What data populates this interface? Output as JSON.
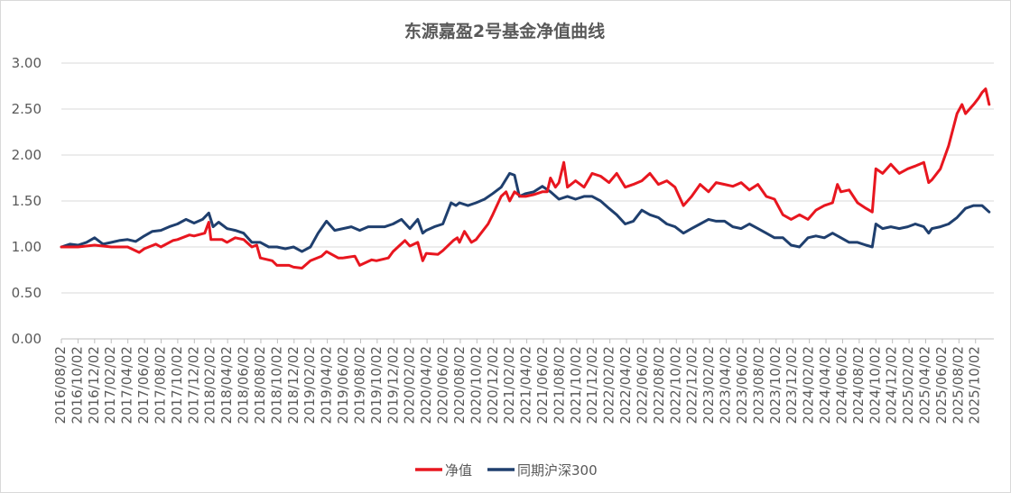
{
  "chart_data": {
    "type": "line",
    "title": "东源嘉盈2号基金净值曲线",
    "xlabel": "",
    "ylabel": "",
    "ylim": [
      0,
      3
    ],
    "yticks": [
      "0.00",
      "0.50",
      "1.00",
      "1.50",
      "2.00",
      "2.50",
      "3.00"
    ],
    "grid": "horizontal",
    "legend_position": "bottom",
    "x_tick_labels": [
      "2016/08/02",
      "2016/10/02",
      "2016/12/02",
      "2017/02/02",
      "2017/04/02",
      "2017/06/02",
      "2017/08/02",
      "2017/10/02",
      "2017/12/02",
      "2018/02/02",
      "2018/04/02",
      "2018/06/02",
      "2018/08/02",
      "2018/10/02",
      "2018/12/02",
      "2019/02/02",
      "2019/04/02",
      "2019/06/02",
      "2019/08/02",
      "2019/10/02",
      "2019/12/02",
      "2020/02/02",
      "2020/04/02",
      "2020/06/02",
      "2020/08/02",
      "2020/10/02",
      "2020/12/02",
      "2021/02/02",
      "2021/04/02",
      "2021/06/02",
      "2021/08/02",
      "2021/10/02",
      "2021/12/02",
      "2022/02/02",
      "2022/04/02",
      "2022/06/02",
      "2022/08/02",
      "2022/10/02",
      "2022/12/02",
      "2023/02/02",
      "2023/04/02",
      "2023/06/02",
      "2023/08/02",
      "2023/10/02",
      "2023/12/02",
      "2024/02/02",
      "2024/04/02",
      "2024/06/02",
      "2024/08/02",
      "2024/10/02",
      "2024/12/02",
      "2025/02/02",
      "2025/04/02",
      "2025/06/02",
      "2025/08/02",
      "2025/10/02"
    ],
    "series": [
      {
        "name": "净值",
        "color": "#e8161f",
        "points": [
          [
            "2016/08/02",
            1.0
          ],
          [
            "2016/10/02",
            1.0
          ],
          [
            "2016/12/02",
            1.02
          ],
          [
            "2017/02/02",
            1.0
          ],
          [
            "2017/04/02",
            1.0
          ],
          [
            "2017/05/15",
            0.94
          ],
          [
            "2017/06/02",
            0.98
          ],
          [
            "2017/07/15",
            1.03
          ],
          [
            "2017/08/02",
            1.0
          ],
          [
            "2017/09/15",
            1.07
          ],
          [
            "2017/10/02",
            1.08
          ],
          [
            "2017/11/15",
            1.13
          ],
          [
            "2017/12/02",
            1.12
          ],
          [
            "2018/01/10",
            1.15
          ],
          [
            "2018/01/25",
            1.27
          ],
          [
            "2018/02/02",
            1.08
          ],
          [
            "2018/03/15",
            1.08
          ],
          [
            "2018/04/02",
            1.05
          ],
          [
            "2018/05/02",
            1.1
          ],
          [
            "2018/06/02",
            1.08
          ],
          [
            "2018/07/02",
            1.0
          ],
          [
            "2018/07/20",
            1.02
          ],
          [
            "2018/08/02",
            0.88
          ],
          [
            "2018/09/15",
            0.85
          ],
          [
            "2018/10/02",
            0.8
          ],
          [
            "2018/11/15",
            0.8
          ],
          [
            "2018/12/02",
            0.78
          ],
          [
            "2019/01/02",
            0.77
          ],
          [
            "2019/02/02",
            0.85
          ],
          [
            "2019/03/15",
            0.9
          ],
          [
            "2019/04/02",
            0.95
          ],
          [
            "2019/05/15",
            0.88
          ],
          [
            "2019/06/02",
            0.88
          ],
          [
            "2019/07/15",
            0.9
          ],
          [
            "2019/08/02",
            0.8
          ],
          [
            "2019/09/15",
            0.86
          ],
          [
            "2019/10/02",
            0.85
          ],
          [
            "2019/11/15",
            0.88
          ],
          [
            "2019/12/02",
            0.95
          ],
          [
            "2020/01/15",
            1.07
          ],
          [
            "2020/02/02",
            1.01
          ],
          [
            "2020/03/02",
            1.05
          ],
          [
            "2020/03/20",
            0.85
          ],
          [
            "2020/04/02",
            0.93
          ],
          [
            "2020/05/15",
            0.92
          ],
          [
            "2020/06/02",
            0.96
          ],
          [
            "2020/07/10",
            1.07
          ],
          [
            "2020/07/25",
            1.1
          ],
          [
            "2020/08/02",
            1.05
          ],
          [
            "2020/08/20",
            1.17
          ],
          [
            "2020/09/15",
            1.05
          ],
          [
            "2020/10/02",
            1.08
          ],
          [
            "2020/11/15",
            1.25
          ],
          [
            "2020/12/02",
            1.35
          ],
          [
            "2021/01/02",
            1.55
          ],
          [
            "2021/01/20",
            1.6
          ],
          [
            "2021/02/02",
            1.5
          ],
          [
            "2021/02/20",
            1.6
          ],
          [
            "2021/03/15",
            1.55
          ],
          [
            "2021/04/02",
            1.55
          ],
          [
            "2021/05/02",
            1.57
          ],
          [
            "2021/06/02",
            1.6
          ],
          [
            "2021/06/20",
            1.6
          ],
          [
            "2021/07/02",
            1.75
          ],
          [
            "2021/07/20",
            1.65
          ],
          [
            "2021/08/02",
            1.7
          ],
          [
            "2021/08/20",
            1.92
          ],
          [
            "2021/09/02",
            1.65
          ],
          [
            "2021/10/02",
            1.72
          ],
          [
            "2021/11/02",
            1.65
          ],
          [
            "2021/12/02",
            1.8
          ],
          [
            "2022/01/02",
            1.77
          ],
          [
            "2022/02/02",
            1.7
          ],
          [
            "2022/03/02",
            1.8
          ],
          [
            "2022/04/02",
            1.65
          ],
          [
            "2022/05/02",
            1.68
          ],
          [
            "2022/06/02",
            1.72
          ],
          [
            "2022/07/02",
            1.8
          ],
          [
            "2022/08/02",
            1.68
          ],
          [
            "2022/09/02",
            1.72
          ],
          [
            "2022/10/02",
            1.65
          ],
          [
            "2022/11/02",
            1.45
          ],
          [
            "2022/12/02",
            1.55
          ],
          [
            "2023/01/02",
            1.68
          ],
          [
            "2023/02/02",
            1.6
          ],
          [
            "2023/03/02",
            1.7
          ],
          [
            "2023/04/02",
            1.68
          ],
          [
            "2023/05/02",
            1.66
          ],
          [
            "2023/06/02",
            1.7
          ],
          [
            "2023/07/02",
            1.62
          ],
          [
            "2023/08/02",
            1.68
          ],
          [
            "2023/09/02",
            1.55
          ],
          [
            "2023/10/02",
            1.52
          ],
          [
            "2023/11/02",
            1.35
          ],
          [
            "2023/12/02",
            1.3
          ],
          [
            "2024/01/02",
            1.35
          ],
          [
            "2024/02/02",
            1.3
          ],
          [
            "2024/03/02",
            1.4
          ],
          [
            "2024/04/02",
            1.45
          ],
          [
            "2024/05/02",
            1.48
          ],
          [
            "2024/05/20",
            1.68
          ],
          [
            "2024/06/02",
            1.6
          ],
          [
            "2024/07/02",
            1.62
          ],
          [
            "2024/08/02",
            1.48
          ],
          [
            "2024/09/02",
            1.42
          ],
          [
            "2024/09/25",
            1.38
          ],
          [
            "2024/10/08",
            1.85
          ],
          [
            "2024/11/02",
            1.8
          ],
          [
            "2024/12/02",
            1.9
          ],
          [
            "2025/01/02",
            1.8
          ],
          [
            "2025/02/02",
            1.85
          ],
          [
            "2025/03/02",
            1.88
          ],
          [
            "2025/04/02",
            1.92
          ],
          [
            "2025/04/20",
            1.7
          ],
          [
            "2025/05/02",
            1.73
          ],
          [
            "2025/06/02",
            1.85
          ],
          [
            "2025/07/02",
            2.1
          ],
          [
            "2025/08/02",
            2.45
          ],
          [
            "2025/08/20",
            2.55
          ],
          [
            "2025/09/02",
            2.45
          ],
          [
            "2025/10/02",
            2.55
          ],
          [
            "2025/10/20",
            2.62
          ],
          [
            "2025/11/02",
            2.68
          ],
          [
            "2025/11/15",
            2.72
          ],
          [
            "2025/11/28",
            2.55
          ]
        ]
      },
      {
        "name": "同期沪深300",
        "color": "#1f3f6e",
        "points": [
          [
            "2016/08/02",
            1.0
          ],
          [
            "2016/09/02",
            1.03
          ],
          [
            "2016/10/02",
            1.02
          ],
          [
            "2016/11/02",
            1.05
          ],
          [
            "2016/12/02",
            1.1
          ],
          [
            "2017/01/02",
            1.03
          ],
          [
            "2017/02/02",
            1.05
          ],
          [
            "2017/03/02",
            1.07
          ],
          [
            "2017/04/02",
            1.08
          ],
          [
            "2017/05/02",
            1.06
          ],
          [
            "2017/06/02",
            1.12
          ],
          [
            "2017/07/02",
            1.17
          ],
          [
            "2017/08/02",
            1.18
          ],
          [
            "2017/09/02",
            1.22
          ],
          [
            "2017/10/02",
            1.25
          ],
          [
            "2017/11/02",
            1.3
          ],
          [
            "2017/12/02",
            1.26
          ],
          [
            "2018/01/02",
            1.3
          ],
          [
            "2018/01/25",
            1.37
          ],
          [
            "2018/02/10",
            1.22
          ],
          [
            "2018/03/02",
            1.27
          ],
          [
            "2018/04/02",
            1.2
          ],
          [
            "2018/05/02",
            1.18
          ],
          [
            "2018/06/02",
            1.15
          ],
          [
            "2018/07/02",
            1.05
          ],
          [
            "2018/08/02",
            1.05
          ],
          [
            "2018/09/02",
            1.0
          ],
          [
            "2018/10/02",
            1.0
          ],
          [
            "2018/11/02",
            0.98
          ],
          [
            "2018/12/02",
            1.0
          ],
          [
            "2019/01/02",
            0.95
          ],
          [
            "2019/02/02",
            1.0
          ],
          [
            "2019/03/02",
            1.15
          ],
          [
            "2019/04/02",
            1.28
          ],
          [
            "2019/05/02",
            1.18
          ],
          [
            "2019/06/02",
            1.2
          ],
          [
            "2019/07/02",
            1.22
          ],
          [
            "2019/08/02",
            1.18
          ],
          [
            "2019/09/02",
            1.22
          ],
          [
            "2019/10/02",
            1.22
          ],
          [
            "2019/11/02",
            1.22
          ],
          [
            "2019/12/02",
            1.25
          ],
          [
            "2020/01/02",
            1.3
          ],
          [
            "2020/02/02",
            1.2
          ],
          [
            "2020/03/02",
            1.3
          ],
          [
            "2020/03/20",
            1.15
          ],
          [
            "2020/04/02",
            1.18
          ],
          [
            "2020/05/02",
            1.22
          ],
          [
            "2020/06/02",
            1.25
          ],
          [
            "2020/07/02",
            1.48
          ],
          [
            "2020/07/20",
            1.45
          ],
          [
            "2020/08/02",
            1.48
          ],
          [
            "2020/09/02",
            1.45
          ],
          [
            "2020/10/02",
            1.48
          ],
          [
            "2020/11/02",
            1.52
          ],
          [
            "2020/12/02",
            1.58
          ],
          [
            "2021/01/02",
            1.65
          ],
          [
            "2021/02/02",
            1.8
          ],
          [
            "2021/02/20",
            1.78
          ],
          [
            "2021/03/10",
            1.55
          ],
          [
            "2021/04/02",
            1.58
          ],
          [
            "2021/05/02",
            1.6
          ],
          [
            "2021/06/02",
            1.66
          ],
          [
            "2021/07/02",
            1.6
          ],
          [
            "2021/08/02",
            1.52
          ],
          [
            "2021/09/02",
            1.55
          ],
          [
            "2021/10/02",
            1.52
          ],
          [
            "2021/11/02",
            1.55
          ],
          [
            "2021/12/02",
            1.55
          ],
          [
            "2022/01/02",
            1.5
          ],
          [
            "2022/02/02",
            1.42
          ],
          [
            "2022/03/02",
            1.35
          ],
          [
            "2022/04/02",
            1.25
          ],
          [
            "2022/05/02",
            1.28
          ],
          [
            "2022/06/02",
            1.4
          ],
          [
            "2022/07/02",
            1.35
          ],
          [
            "2022/08/02",
            1.32
          ],
          [
            "2022/09/02",
            1.25
          ],
          [
            "2022/10/02",
            1.22
          ],
          [
            "2022/11/02",
            1.15
          ],
          [
            "2022/12/02",
            1.2
          ],
          [
            "2023/01/02",
            1.25
          ],
          [
            "2023/02/02",
            1.3
          ],
          [
            "2023/03/02",
            1.28
          ],
          [
            "2023/04/02",
            1.28
          ],
          [
            "2023/05/02",
            1.22
          ],
          [
            "2023/06/02",
            1.2
          ],
          [
            "2023/07/02",
            1.25
          ],
          [
            "2023/08/02",
            1.2
          ],
          [
            "2023/09/02",
            1.15
          ],
          [
            "2023/10/02",
            1.1
          ],
          [
            "2023/11/02",
            1.1
          ],
          [
            "2023/12/02",
            1.02
          ],
          [
            "2024/01/02",
            1.0
          ],
          [
            "2024/02/02",
            1.1
          ],
          [
            "2024/03/02",
            1.12
          ],
          [
            "2024/04/02",
            1.1
          ],
          [
            "2024/05/02",
            1.15
          ],
          [
            "2024/06/02",
            1.1
          ],
          [
            "2024/07/02",
            1.05
          ],
          [
            "2024/08/02",
            1.05
          ],
          [
            "2024/09/02",
            1.02
          ],
          [
            "2024/09/25",
            1.0
          ],
          [
            "2024/10/08",
            1.25
          ],
          [
            "2024/11/02",
            1.2
          ],
          [
            "2024/12/02",
            1.22
          ],
          [
            "2025/01/02",
            1.2
          ],
          [
            "2025/02/02",
            1.22
          ],
          [
            "2025/03/02",
            1.25
          ],
          [
            "2025/04/02",
            1.22
          ],
          [
            "2025/04/20",
            1.15
          ],
          [
            "2025/05/02",
            1.2
          ],
          [
            "2025/06/02",
            1.22
          ],
          [
            "2025/07/02",
            1.25
          ],
          [
            "2025/08/02",
            1.32
          ],
          [
            "2025/09/02",
            1.42
          ],
          [
            "2025/10/02",
            1.45
          ],
          [
            "2025/11/02",
            1.45
          ],
          [
            "2025/11/28",
            1.38
          ]
        ]
      }
    ]
  }
}
